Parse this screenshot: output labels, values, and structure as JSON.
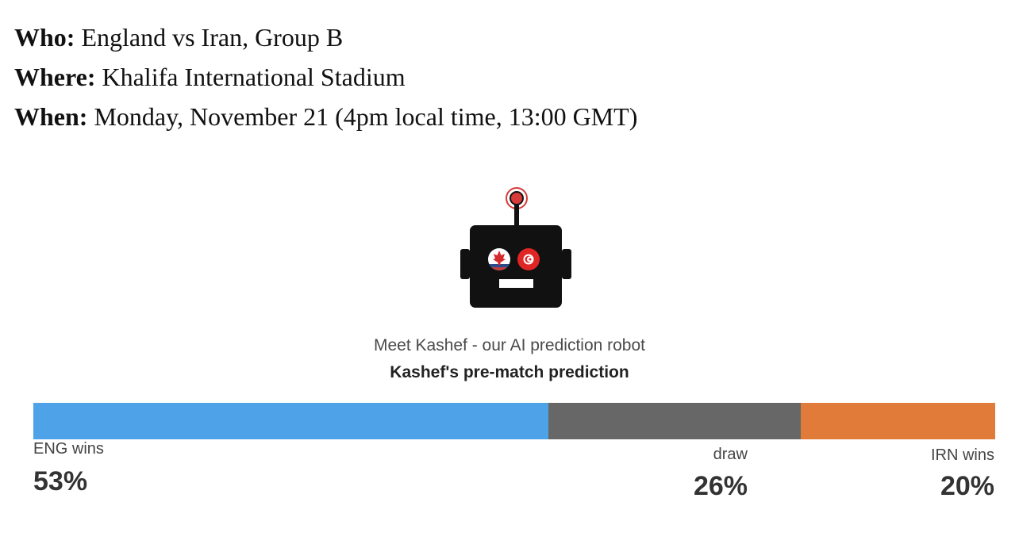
{
  "info": {
    "who_label": "Who:",
    "who_value": " England vs Iran, Group B",
    "where_label": "Where:",
    "where_value": " Khalifa International Stadium",
    "when_label": "When:",
    "when_value": " Monday, November 21 (4pm local time, 13:00 GMT)"
  },
  "robot": {
    "icon": "robot-icon",
    "left_eye": "canada-flag-icon",
    "right_eye": "tunisia-flag-icon"
  },
  "caption": {
    "subtitle": "Meet Kashef - our AI prediction robot",
    "title": "Kashef's pre-match prediction"
  },
  "prediction": {
    "segments": [
      {
        "label": "ENG wins",
        "value": 53,
        "display": "53%",
        "color": "#4da2e8"
      },
      {
        "label": "draw",
        "value": 26,
        "display": "26%",
        "color": "#676767"
      },
      {
        "label": "IRN wins",
        "value": 20,
        "display": "20%",
        "color": "#e07b39"
      }
    ]
  }
}
